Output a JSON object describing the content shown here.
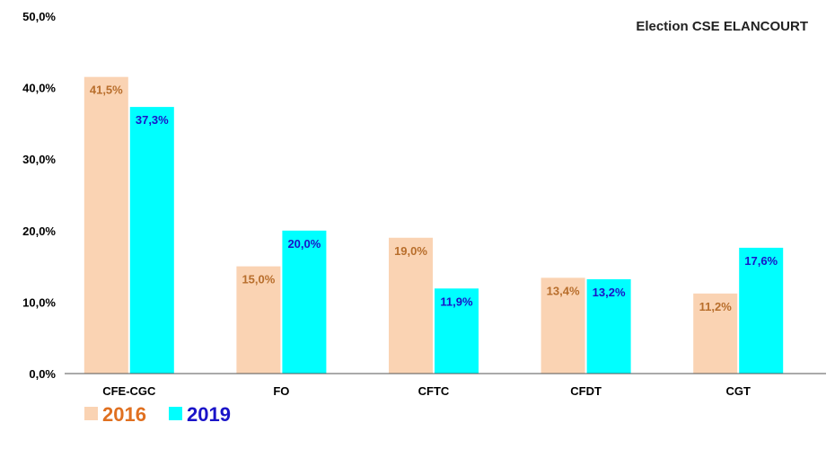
{
  "chart_data": {
    "type": "bar",
    "title": "Election CSE ELANCOURT",
    "categories": [
      "CFE-CGC",
      "FO",
      "CFTC",
      "CFDT",
      "CGT"
    ],
    "series": [
      {
        "name": "2016",
        "values": [
          41.5,
          15.0,
          19.0,
          13.4,
          11.2
        ],
        "labels": [
          "41,5%",
          "15,0%",
          "19,0%",
          "13,4%",
          "11,2%"
        ],
        "color": "#fad3b3",
        "label_color": "#b86e2c",
        "legend_color": "#e07020"
      },
      {
        "name": "2019",
        "values": [
          37.3,
          20.0,
          11.9,
          13.2,
          17.6
        ],
        "labels": [
          "37,3%",
          "20,0%",
          "11,9%",
          "13,2%",
          "17,6%"
        ],
        "color": "#00ffff",
        "label_color": "#1a14c8",
        "legend_color": "#1a14c8"
      }
    ],
    "ylim": [
      0,
      50
    ],
    "yticks": [
      0,
      10,
      20,
      30,
      40,
      50
    ],
    "ytick_labels": [
      "0,0%",
      "10,0%",
      "20,0%",
      "30,0%",
      "40,0%",
      "50,0%"
    ],
    "xlabel": "",
    "ylabel": "",
    "grid": false,
    "legend_position": "bottom-left"
  }
}
